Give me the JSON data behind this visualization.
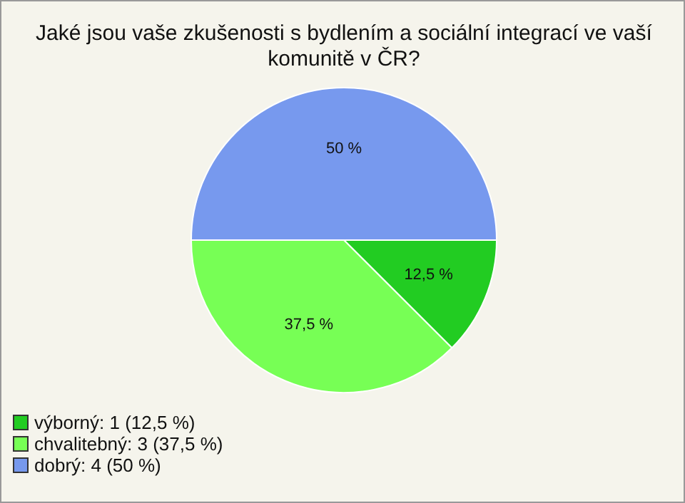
{
  "chart_data": {
    "type": "pie",
    "title": "Jaké jsou vaše zkušenosti s bydlením a sociální integrací ve vaší komunitě v ČR?",
    "categories": [
      "výborný: 1 (12,5 %)",
      "chvalitebný: 3 (37,5 %)",
      "dobrý: 4 (50 %)"
    ],
    "values": [
      12.5,
      37.5,
      50
    ],
    "colors": [
      "#22cc22",
      "#77ff55",
      "#7799ee"
    ],
    "value_labels": [
      "12,5 %",
      "37,5 %",
      "50 %"
    ],
    "legend": "bottom left"
  }
}
